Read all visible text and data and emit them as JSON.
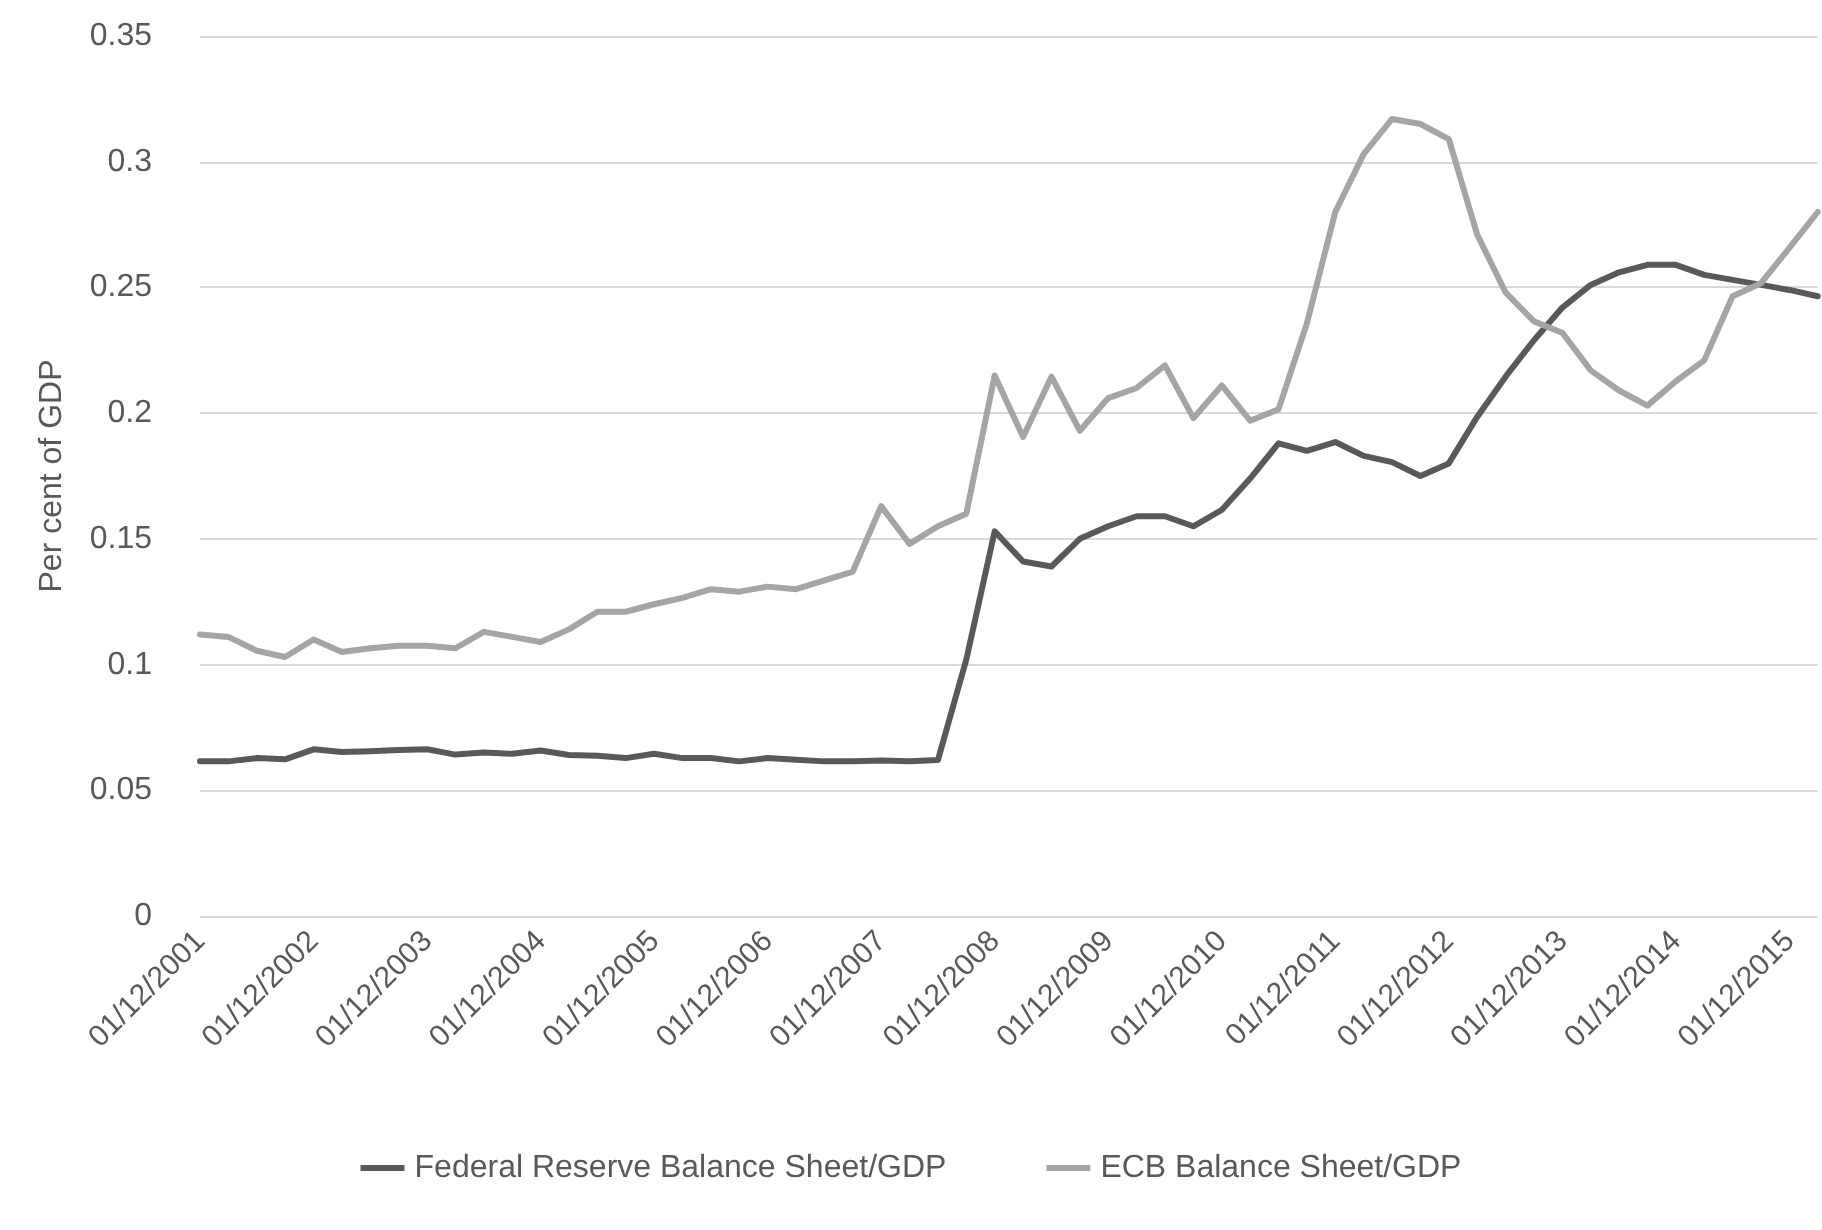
{
  "chart_data": {
    "type": "line",
    "ylabel": "Per cent of GDP",
    "categories": [
      "01/12/2001",
      null,
      null,
      null,
      "01/12/2002",
      null,
      null,
      null,
      "01/12/2003",
      null,
      null,
      null,
      "01/12/2004",
      null,
      null,
      null,
      "01/12/2005",
      null,
      null,
      null,
      "01/12/2006",
      null,
      null,
      null,
      "01/12/2007",
      null,
      null,
      null,
      "01/12/2008",
      null,
      null,
      null,
      "01/12/2009",
      null,
      null,
      null,
      "01/12/2010",
      null,
      null,
      null,
      "01/12/2011",
      null,
      null,
      null,
      "01/12/2012",
      null,
      null,
      null,
      "01/12/2013",
      null,
      null,
      null,
      "01/12/2014",
      null,
      null,
      null,
      "01/12/2015",
      null
    ],
    "series": [
      {
        "name": "Federal Reserve Balance Sheet/GDP",
        "color": "#595959",
        "values": [
          0.0615,
          0.0615,
          0.0628,
          0.0623,
          0.0663,
          0.0652,
          0.0655,
          0.066,
          0.0663,
          0.0642,
          0.065,
          0.0645,
          0.0658,
          0.064,
          0.0637,
          0.0628,
          0.0645,
          0.0628,
          0.0628,
          0.0615,
          0.0628,
          0.0621,
          0.0615,
          0.0615,
          0.0618,
          0.0615,
          0.062,
          0.102,
          0.153,
          0.141,
          0.139,
          0.15,
          0.155,
          0.159,
          0.159,
          0.155,
          0.1615,
          0.174,
          0.188,
          0.185,
          0.1885,
          0.183,
          0.1805,
          0.175,
          0.18,
          0.1985,
          0.2145,
          0.229,
          0.242,
          0.251,
          0.256,
          0.259,
          0.259,
          0.255,
          0.253,
          0.251,
          0.249,
          0.2465
        ]
      },
      {
        "name": "ECB Balance Sheet/GDP",
        "color": "#a5a5a5",
        "values": [
          0.112,
          0.111,
          0.1055,
          0.103,
          0.11,
          0.105,
          0.1065,
          0.1075,
          0.1075,
          0.1065,
          0.113,
          0.111,
          0.109,
          0.114,
          0.121,
          0.121,
          0.124,
          0.1265,
          0.13,
          0.129,
          0.131,
          0.13,
          0.1335,
          0.137,
          0.163,
          0.148,
          0.155,
          0.16,
          0.215,
          0.1905,
          0.2145,
          0.193,
          0.206,
          0.21,
          0.219,
          0.198,
          0.211,
          0.197,
          0.2015,
          0.2357,
          0.28,
          0.303,
          0.317,
          0.315,
          0.309,
          0.271,
          0.248,
          0.2365,
          0.232,
          0.217,
          0.209,
          0.203,
          0.2127,
          0.221,
          0.2465,
          0.2517,
          0.2657,
          0.28
        ]
      }
    ],
    "ylim": [
      0,
      0.35
    ],
    "yticks": [
      0,
      0.05,
      0.1,
      0.15,
      0.2,
      0.25,
      0.3,
      0.35
    ],
    "grid": "y",
    "legend": "bottom",
    "marker": "none",
    "line_style": "solid"
  }
}
